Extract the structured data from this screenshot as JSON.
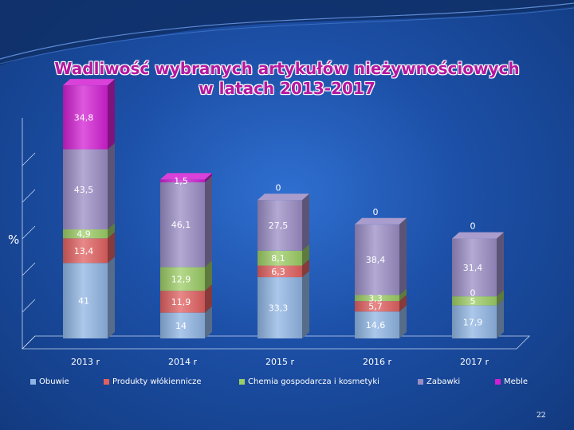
{
  "slide": {
    "title_line1": "Wadliwość wybranych artykułów nieżywnościowych",
    "title_line2": "w latach 2013-2017",
    "y_unit": "%",
    "page_number": "22"
  },
  "chart_data": {
    "type": "bar",
    "stacked": true,
    "title": "Wadliwość wybranych artykułów nieżywnościowych w latach 2013-2017",
    "ylabel": "%",
    "legend_position": "bottom",
    "categories": [
      "2013 r",
      "2014 r",
      "2015 r",
      "2016 r",
      "2017 r"
    ],
    "series": [
      {
        "name": "Obuwie",
        "color": "#8fb4e3",
        "values": [
          41,
          14,
          33.3,
          14.6,
          17.9
        ],
        "labels": [
          "41",
          "14",
          "33,3",
          "14,6",
          "17,9"
        ]
      },
      {
        "name": "Produkty włókiennicze",
        "color": "#e06060",
        "values": [
          13.4,
          11.9,
          6.3,
          5.7,
          0
        ],
        "labels": [
          "13,4",
          "11,9",
          "6,3",
          "5,7",
          "0"
        ]
      },
      {
        "name": "Chemia gospodarcza i kosmetyki",
        "color": "#9ccc65",
        "values": [
          4.9,
          12.9,
          8.1,
          3.3,
          5
        ],
        "labels": [
          "4,9",
          "12,9",
          "8,1",
          "3,3",
          "5"
        ]
      },
      {
        "name": "Zabawki",
        "color": "#9a8cc4",
        "values": [
          43.5,
          46.1,
          27.5,
          38.4,
          31.4
        ],
        "labels": [
          "43,5",
          "46,1",
          "27,5",
          "38,4",
          "31,4"
        ]
      },
      {
        "name": "Meble",
        "color": "#d21fd2",
        "values": [
          34.8,
          1.5,
          0,
          0,
          0
        ],
        "labels": [
          "34,8",
          "1,5",
          "0",
          "0",
          "0"
        ]
      }
    ]
  }
}
